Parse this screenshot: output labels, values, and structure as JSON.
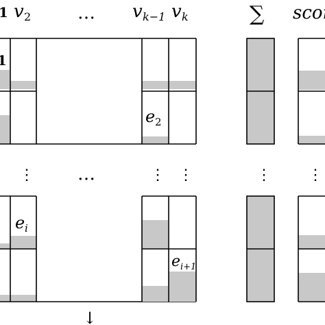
{
  "header": {
    "v1_partial": "1",
    "v2": "v",
    "v2_sub": "2",
    "ellipsis": "…",
    "vk1": "v",
    "vk1_sub": "k−1",
    "vk": "v",
    "vk_sub": "k",
    "sigma": "∑",
    "score": "scor"
  },
  "cells": {
    "e2": "e",
    "e2_sub": "2",
    "ei": "e",
    "ei_sub": "i",
    "ei1": "e",
    "ei1_sub": "i+1",
    "row_label_partial": "1"
  },
  "dots": {
    "vertical": "⋮",
    "horizontal": "…",
    "down_arrow": "↓"
  },
  "colors": {
    "fill_gray": "#c8c8c8",
    "stroke": "#000000"
  }
}
